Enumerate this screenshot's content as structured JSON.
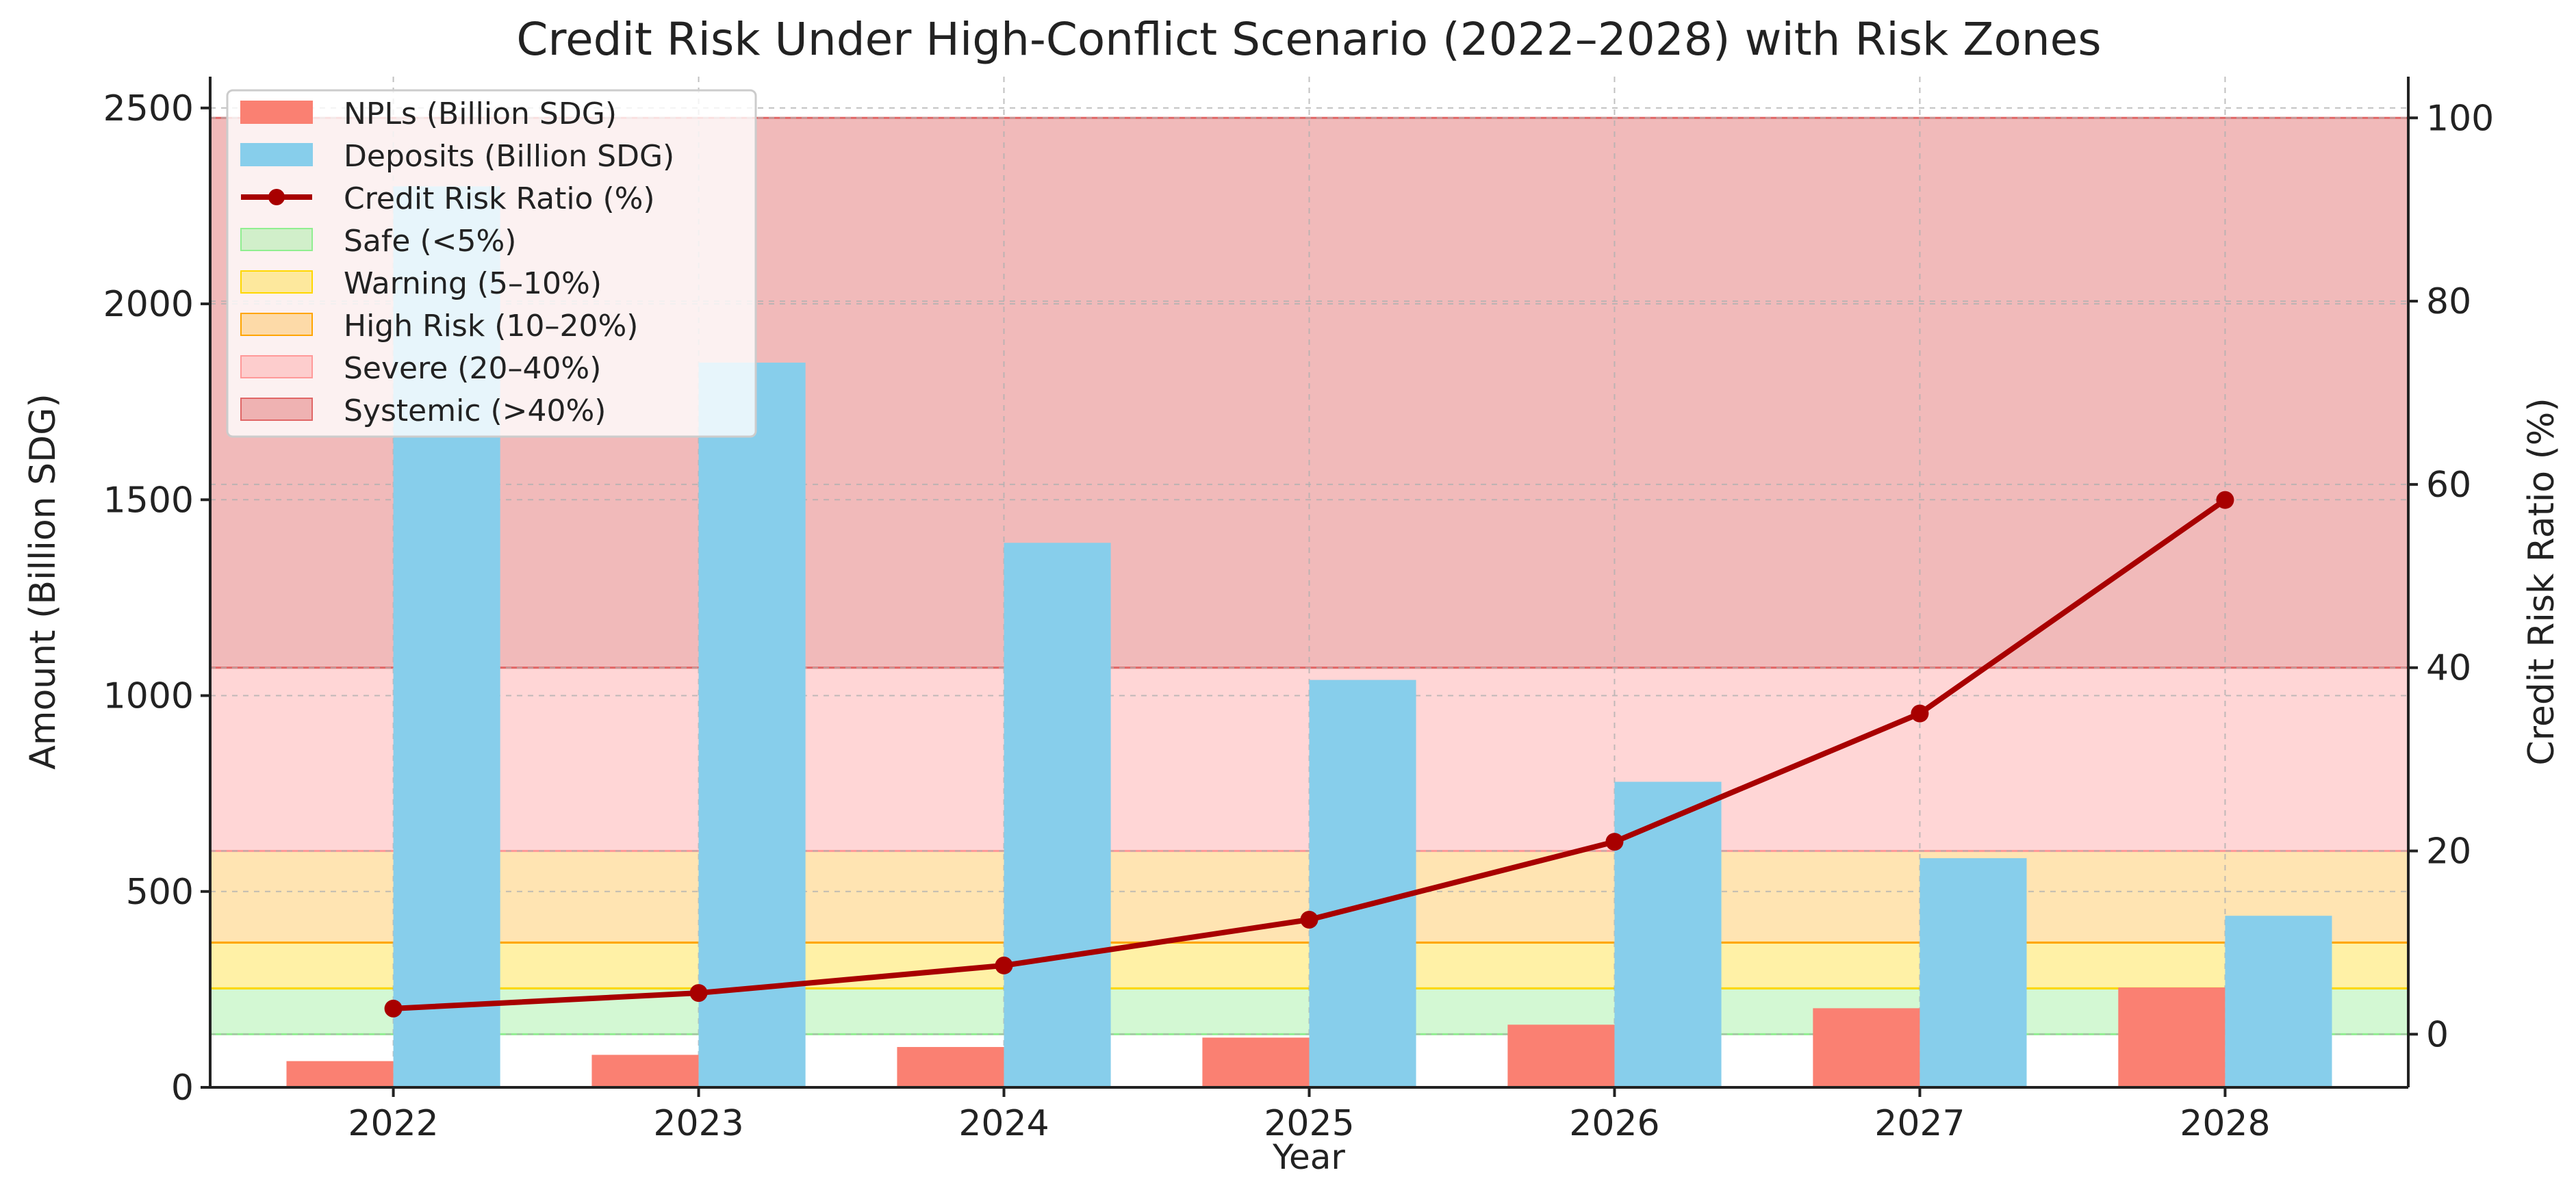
{
  "chart_data": {
    "type": "bar",
    "title": "Credit Risk Under High-Conflict Scenario (2022–2028) with Risk Zones",
    "xlabel": "Year",
    "ylabel": "Amount (Billion SDG)",
    "y2label": "Credit Risk Ratio (%)",
    "categories": [
      "2022",
      "2023",
      "2024",
      "2025",
      "2026",
      "2027",
      "2028"
    ],
    "ylim": [
      0,
      2580
    ],
    "y2lim": [
      -5.8,
      104.5
    ],
    "yticks": [
      "0",
      "500",
      "1000",
      "1500",
      "2000",
      "2500"
    ],
    "y2ticks": [
      "0",
      "20",
      "40",
      "60",
      "80",
      "100"
    ],
    "grid": true,
    "legend_position": "top-left",
    "series": [
      {
        "name": "NPLs (Billion SDG)",
        "kind": "bar",
        "axis": "left",
        "color": "#fa8072",
        "values": [
          67,
          83,
          103,
          127,
          160,
          202,
          255
        ]
      },
      {
        "name": "Deposits (Billion SDG)",
        "kind": "bar",
        "axis": "left",
        "color": "#87ceeb",
        "values": [
          2300,
          1850,
          1390,
          1040,
          780,
          585,
          438
        ]
      },
      {
        "name": "Credit Risk Ratio (%)",
        "kind": "line",
        "axis": "right",
        "color": "#a80000",
        "values": [
          2.8,
          4.5,
          7.5,
          12.5,
          21.0,
          35.0,
          58.3
        ]
      }
    ],
    "zones": [
      {
        "name": "Safe (<5%)",
        "from": 0,
        "to": 5,
        "color": "#90ee90",
        "opacity": 0.4
      },
      {
        "name": "Warning (5–10%)",
        "from": 5,
        "to": 10,
        "color": "#ffd700",
        "opacity": 0.35
      },
      {
        "name": "High Risk (10–20%)",
        "from": 10,
        "to": 20,
        "color": "#ffa500",
        "opacity": 0.3
      },
      {
        "name": "Severe (20–40%)",
        "from": 20,
        "to": 40,
        "color": "#ff9999",
        "opacity": 0.4
      },
      {
        "name": "Systemic (>40%)",
        "from": 40,
        "to": 100,
        "color": "#e06666",
        "opacity": 0.45
      }
    ]
  }
}
